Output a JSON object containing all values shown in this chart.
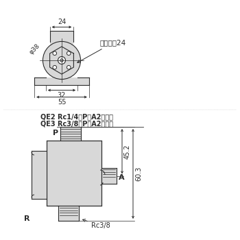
{
  "bg_color": "#ffffff",
  "line_color": "#2a2a2a",
  "dim_color": "#2a2a2a",
  "light_gray": "#d8d8d8",
  "label_spanner": "スパナ帤24",
  "label_phi38": "φ38",
  "label_24": "24",
  "label_32": "32",
  "label_55": "55",
  "label_QE2": "QE2 Rc1/4（P・A2か所）",
  "label_QE3": "QE3 Rc3/8（P・A2か所）",
  "label_P": "P",
  "label_A": "A",
  "label_R": "R",
  "label_Rc38": "Rc3/8",
  "label_452": "45.2",
  "label_603": "60.3"
}
